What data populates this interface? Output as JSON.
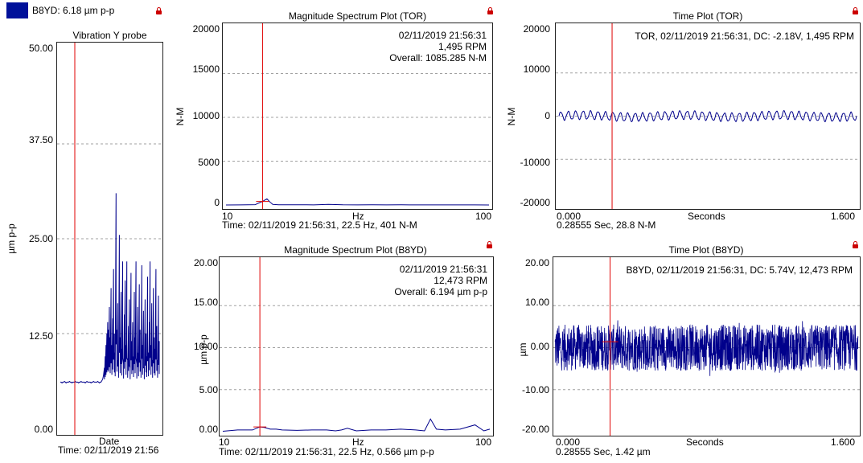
{
  "legend": {
    "label": "B8YD: 6.18 µm p-p",
    "color": "#00119a"
  },
  "lock_icon": "lock-icon",
  "colors": {
    "trace": "#00008b",
    "cursor": "#e00000",
    "grid": "#a0a0a0",
    "frame": "#222222"
  },
  "chart_data": [
    {
      "id": "trend",
      "type": "line",
      "title": "Vibration Y probe",
      "xlabel": "Date",
      "ylabel": "µm p-p",
      "ylim": [
        0,
        50
      ],
      "yticks": [
        "50.00",
        "37.50",
        "25.00",
        "12.50",
        "0.00"
      ],
      "grid": true,
      "cursor_text": "Time: 02/11/2019 21:56",
      "baseline": 6.1,
      "series": [
        {
          "values": [
            6.1,
            6.1,
            6.0,
            6.1,
            6.1,
            6.2,
            6.1,
            6.0,
            6.1,
            6.1,
            6.1,
            6.2,
            6.1,
            6.1,
            6.0,
            6.1,
            6.1,
            6.1,
            6.2,
            6.1,
            6.1,
            6.1,
            6.0,
            6.1,
            6.1,
            6.2,
            6.1,
            6.1,
            6.1,
            6.1,
            6.0,
            6.1,
            6.2,
            6.1,
            6.1,
            6.1,
            6.1,
            6.0,
            6.1,
            6.1,
            6.2,
            6.1,
            6.1,
            6.1,
            6.1,
            6.2,
            6.1,
            6.0,
            6.1,
            6.1,
            6.3,
            6.5,
            7.0,
            8.0,
            9.5,
            11.0,
            12.5,
            14.0,
            13.0,
            16.0,
            12.0,
            18.5,
            11.0,
            14.5,
            21.0,
            12.5,
            10.0,
            31.0,
            13.0,
            16.5,
            9.0,
            25.5,
            12.0,
            18.0,
            10.5,
            22.0,
            8.5,
            15.0,
            19.5,
            11.0,
            22.0,
            9.0,
            13.5,
            17.0,
            8.0,
            20.5,
            11.5,
            14.0,
            9.5,
            18.0,
            12.0,
            22.0,
            8.5,
            16.0,
            10.0,
            19.0,
            13.0,
            9.0,
            21.5,
            11.0,
            15.5,
            8.0,
            17.0,
            12.5,
            9.5,
            20.0,
            10.0,
            14.0,
            22.0,
            11.0,
            16.5,
            9.0,
            18.5,
            12.0,
            10.5,
            21.0,
            13.5,
            9.0,
            17.5,
            11.5
          ]
        }
      ]
    },
    {
      "id": "spec_tor",
      "type": "line",
      "title": "Magnitude Spectrum Plot (TOR)",
      "xlabel": "Hz",
      "ylabel": "N-M",
      "xlim": [
        10,
        100
      ],
      "xticks": [
        "10",
        "100"
      ],
      "ylim": [
        0,
        20000
      ],
      "yticks": [
        "20000",
        "15000",
        "10000",
        "5000",
        "0"
      ],
      "grid": true,
      "info": [
        "02/11/2019 21:56:31",
        "1,495 RPM",
        "Overall: 1085.285 N-M"
      ],
      "cursor_text": "Time: 02/11/2019 21:56:31, 22.5 Hz, 401 N-M",
      "series": [
        {
          "x": [
            10,
            15,
            20,
            22.5,
            24,
            25,
            26,
            28,
            30,
            35,
            40,
            45,
            50,
            55,
            60,
            65,
            70,
            75,
            80,
            85,
            90,
            95,
            100
          ],
          "values": [
            0,
            10,
            40,
            401,
            700,
            350,
            60,
            20,
            15,
            30,
            10,
            70,
            15,
            10,
            20,
            10,
            15,
            10,
            5,
            10,
            5,
            5,
            0
          ]
        }
      ]
    },
    {
      "id": "time_tor",
      "type": "line",
      "title": "Time Plot (TOR)",
      "xlabel": "Seconds",
      "ylabel": "N-M",
      "xlim": [
        0,
        1.6
      ],
      "xticks": [
        "0.000",
        "1.600"
      ],
      "ylim": [
        -20000,
        20000
      ],
      "yticks": [
        "20000",
        "10000",
        "0",
        "-10000",
        "-20000"
      ],
      "grid": true,
      "info": [
        "TOR, 02/11/2019 21:56:31, DC: -2.18V, 1,495 RPM"
      ],
      "cursor_text": "0.28555 Sec, 28.8 N-M",
      "cursor_x": 0.28555,
      "wave": {
        "cycles": 40,
        "amplitude": 950
      }
    },
    {
      "id": "spec_b8yd",
      "type": "line",
      "title": "Magnitude Spectrum Plot (B8YD)",
      "xlabel": "Hz",
      "ylabel": "µm p-p",
      "xlim": [
        10,
        100
      ],
      "xticks": [
        "10",
        "100"
      ],
      "ylim": [
        0,
        20
      ],
      "yticks": [
        "20.00",
        "15.00",
        "10.00",
        "5.00",
        "0.00"
      ],
      "grid": true,
      "info": [
        "02/11/2019 21:56:31",
        "12,473 RPM",
        "Overall: 6.194 µm p-p"
      ],
      "cursor_text": "Time: 02/11/2019 21:56:31, 22.5 Hz, 0.566 µm p-p",
      "series": [
        {
          "x": [
            10,
            15,
            20,
            22.5,
            24,
            26,
            28,
            30,
            35,
            40,
            45,
            48,
            50,
            52,
            55,
            60,
            65,
            70,
            75,
            78,
            80,
            82,
            85,
            90,
            95,
            98,
            100
          ],
          "values": [
            0.05,
            0.2,
            0.2,
            0.566,
            0.5,
            0.3,
            0.3,
            0.2,
            0.15,
            0.2,
            0.2,
            0.1,
            0.2,
            0.4,
            0.1,
            0.2,
            0.2,
            0.3,
            0.2,
            0.1,
            1.5,
            0.3,
            0.2,
            0.3,
            0.8,
            0.1,
            0.3
          ]
        }
      ]
    },
    {
      "id": "time_b8yd",
      "type": "line",
      "title": "Time Plot (B8YD)",
      "xlabel": "Seconds",
      "ylabel": "µm",
      "xlim": [
        0,
        1.6
      ],
      "xticks": [
        "0.000",
        "1.600"
      ],
      "ylim": [
        -20,
        20
      ],
      "yticks": [
        "20.00",
        "10.00",
        "0.00",
        "-10.00",
        "-20.00"
      ],
      "grid": true,
      "info": [
        "B8YD, 02/11/2019 21:56:31, DC: 5.74V, 12,473 RPM"
      ],
      "cursor_text": "0.28555 Sec, 1.42 µm",
      "cursor_x": 0.28555,
      "noise": {
        "amplitude": 5.5
      }
    }
  ]
}
